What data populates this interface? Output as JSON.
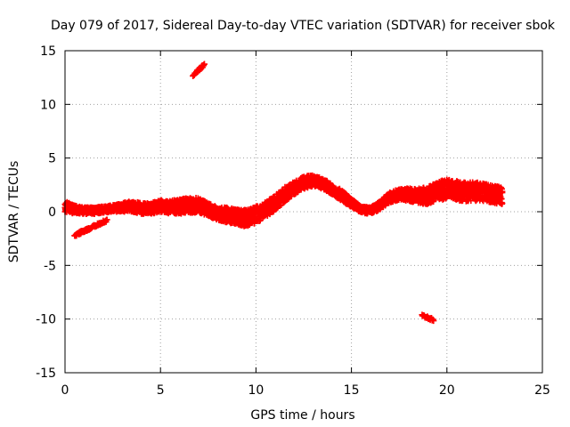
{
  "chart_data": {
    "type": "scatter",
    "title": "Day 079 of 2017, Sidereal Day-to-day VTEC variation (SDTVAR) for receiver sbok",
    "xlabel": "GPS time / hours",
    "ylabel": "SDTVAR / TECUs",
    "xlim": [
      0,
      25
    ],
    "ylim": [
      -15,
      15
    ],
    "xticks": [
      0,
      5,
      10,
      15,
      20,
      25
    ],
    "yticks": [
      -15,
      -10,
      -5,
      0,
      5,
      10,
      15
    ],
    "grid": true,
    "legend": "none",
    "marker": "plus",
    "series_color": "#ff0000",
    "main_band": {
      "x": [
        0.0,
        0.5,
        1.0,
        1.5,
        2.0,
        2.5,
        3.0,
        3.5,
        4.0,
        4.5,
        5.0,
        5.5,
        6.0,
        6.5,
        7.0,
        7.5,
        8.0,
        8.5,
        9.0,
        9.5,
        10.0,
        10.5,
        11.0,
        11.5,
        12.0,
        12.5,
        13.0,
        13.5,
        14.0,
        14.5,
        15.0,
        15.5,
        16.0,
        16.5,
        17.0,
        17.5,
        18.0,
        18.5,
        19.0,
        19.5,
        20.0,
        20.5,
        21.0,
        21.5,
        22.0,
        22.5,
        22.9
      ],
      "center": [
        0.5,
        0.2,
        0.1,
        0.1,
        0.2,
        0.3,
        0.4,
        0.5,
        0.3,
        0.3,
        0.5,
        0.4,
        0.5,
        0.6,
        0.6,
        0.2,
        -0.2,
        -0.3,
        -0.5,
        -0.6,
        -0.3,
        0.2,
        0.8,
        1.6,
        2.2,
        2.7,
        2.9,
        2.6,
        2.1,
        1.5,
        0.8,
        0.2,
        0.1,
        0.6,
        1.3,
        1.6,
        1.6,
        1.5,
        1.5,
        1.9,
        2.1,
        2.0,
        1.8,
        1.9,
        1.8,
        1.6,
        1.5
      ],
      "spread": [
        0.5,
        0.4,
        0.3,
        0.3,
        0.3,
        0.3,
        0.4,
        0.5,
        0.5,
        0.5,
        0.6,
        0.6,
        0.7,
        0.7,
        0.7,
        0.6,
        0.6,
        0.7,
        0.7,
        0.8,
        0.8,
        0.7,
        0.7,
        0.7,
        0.6,
        0.6,
        0.5,
        0.5,
        0.5,
        0.5,
        0.4,
        0.3,
        0.3,
        0.4,
        0.5,
        0.5,
        0.6,
        0.7,
        0.8,
        0.9,
        0.9,
        0.9,
        0.9,
        0.9,
        0.8,
        0.8,
        0.8
      ]
    },
    "segments": [
      {
        "x": [
          0.5,
          2.2
        ],
        "y": [
          -2.2,
          -0.8
        ]
      },
      {
        "x": [
          6.7,
          7.3
        ],
        "y": [
          12.7,
          13.7
        ]
      },
      {
        "x": [
          18.7,
          19.3
        ],
        "y": [
          -9.7,
          -10.1
        ]
      }
    ]
  }
}
